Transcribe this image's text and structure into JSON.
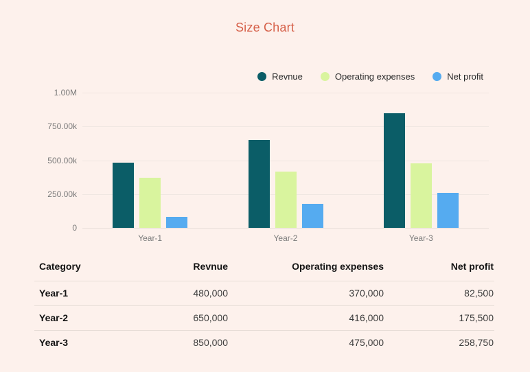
{
  "page": {
    "background": "#fdf1ec",
    "title_color": "#d6614a"
  },
  "chart_data": {
    "type": "bar",
    "title": "Size Chart",
    "categories": [
      "Year-1",
      "Year-2",
      "Year-3"
    ],
    "series": [
      {
        "name": "Revnue",
        "color": "#0b5d67",
        "values": [
          480000,
          650000,
          850000
        ]
      },
      {
        "name": "Operating expenses",
        "color": "#d9f49e",
        "values": [
          370000,
          416000,
          475000
        ]
      },
      {
        "name": "Net profit",
        "color": "#55abf0",
        "values": [
          82500,
          175500,
          258750
        ]
      }
    ],
    "ylim": [
      0,
      1000000
    ],
    "y_ticks": [
      {
        "value": 0,
        "label": "0"
      },
      {
        "value": 250000,
        "label": "250.00k"
      },
      {
        "value": 500000,
        "label": "500.00k"
      },
      {
        "value": 750000,
        "label": "750.00k"
      },
      {
        "value": 1000000,
        "label": "1.00M"
      }
    ],
    "grid": true,
    "legend_position": "top-right"
  },
  "table": {
    "columns": [
      "Category",
      "Revnue",
      "Operating expenses",
      "Net profit"
    ],
    "rows": [
      {
        "category": "Year-1",
        "values": [
          "480,000",
          "370,000",
          "82,500"
        ]
      },
      {
        "category": "Year-2",
        "values": [
          "650,000",
          "416,000",
          "175,500"
        ]
      },
      {
        "category": "Year-3",
        "values": [
          "850,000",
          "475,000",
          "258,750"
        ]
      }
    ]
  }
}
